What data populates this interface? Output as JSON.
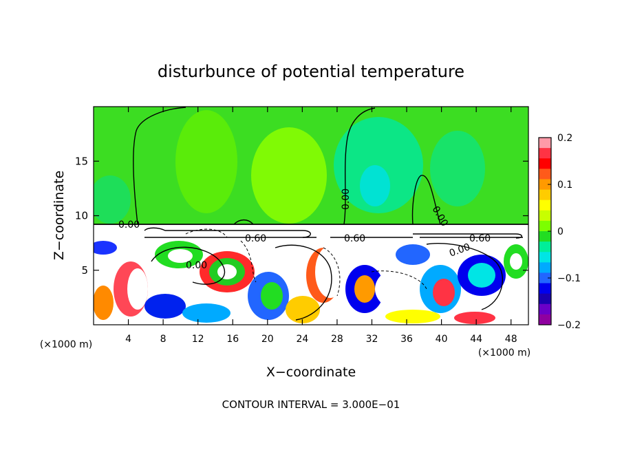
{
  "chart_data": {
    "type": "heatmap",
    "title": "disturbunce of potential temperature",
    "xlabel": "X−coordinate",
    "ylabel": "Z−coordinate",
    "x_unit_left": "(×1000 m)",
    "x_unit_right": "(×1000 m)",
    "xlim": [
      0,
      50
    ],
    "ylim": [
      0,
      20
    ],
    "x_ticks": [
      4,
      8,
      12,
      16,
      20,
      24,
      28,
      32,
      36,
      40,
      44,
      48
    ],
    "y_ticks": [
      5,
      10,
      15
    ],
    "colorbar": {
      "range": [
        -0.2,
        0.2
      ],
      "ticks": [
        0.2,
        0.1,
        0,
        -0.1,
        -0.2
      ],
      "tick_labels": [
        "0.2",
        "0.1",
        "0",
        "−0.1",
        "−0.2"
      ],
      "colors": [
        "#ff9aa8",
        "#ff3344",
        "#ff0000",
        "#ff5a1a",
        "#ff9a00",
        "#ffcc00",
        "#ffff00",
        "#c8ff00",
        "#7cff00",
        "#22dd22",
        "#00ee99",
        "#00e5e5",
        "#00aaff",
        "#2266ff",
        "#0000ee",
        "#1a00b0",
        "#6a00c8",
        "#8f00a0"
      ]
    },
    "contour_labels": [
      "0.00",
      "0.00",
      "0.00",
      "0.00",
      "0.00",
      "0.60",
      "0.60",
      "0.60"
    ],
    "footer": "CONTOUR INTERVAL =  3.000E−01"
  },
  "colors": {
    "upper_field": "#3cdd22",
    "lower_band": "#ffffff"
  }
}
